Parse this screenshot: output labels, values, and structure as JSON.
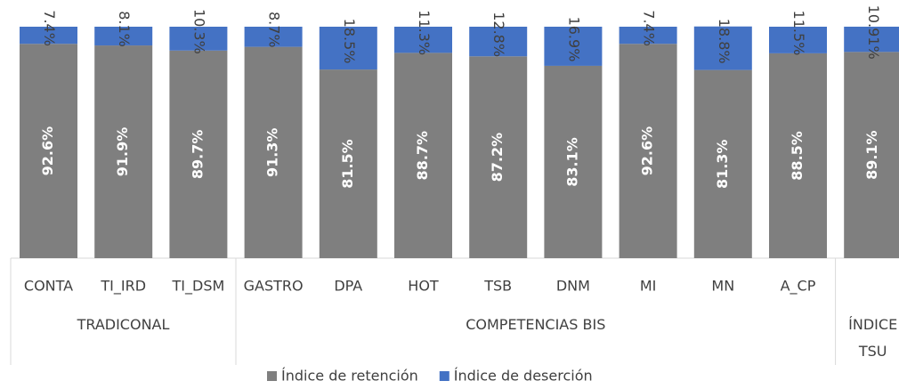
{
  "chart_data": {
    "type": "stacked_bar",
    "categories": [
      "CONTA",
      "TI_IRD",
      "TI_DSM",
      "GASTRO",
      "DPA",
      "HOT",
      "TSB",
      "DNM",
      "MI",
      "MN",
      "A_CP",
      null
    ],
    "groups": [
      {
        "label": "TRADICONAL",
        "span": 3
      },
      {
        "label": "COMPETENCIAS BIS",
        "span": 8
      },
      {
        "label": "ÍNDICE TSU",
        "span": 1
      }
    ],
    "series": [
      {
        "name": "Índice de retención",
        "color": "#7f7f7f",
        "values": [
          92.6,
          91.9,
          89.7,
          91.3,
          81.5,
          88.7,
          87.2,
          83.1,
          92.6,
          81.3,
          88.5,
          89.1
        ],
        "value_labels": [
          "92.6%",
          "91.9%",
          "89.7%",
          "91.3%",
          "81.5%",
          "88.7%",
          "87.2%",
          "83.1%",
          "92.6%",
          "81.3%",
          "88.5%",
          "89.1%"
        ]
      },
      {
        "name": "Índice de deserción",
        "color": "#4472c4",
        "values": [
          7.4,
          8.1,
          10.3,
          8.7,
          18.5,
          11.3,
          12.8,
          16.9,
          7.4,
          18.8,
          11.5,
          10.91
        ],
        "value_labels": [
          "7.4%",
          "8.1%",
          "10.3%",
          "8.7%",
          "18.5%",
          "11.3%",
          "12.8%",
          "16.9%",
          "7.4%",
          "18.8%",
          "11.5%",
          "10.91%"
        ]
      }
    ],
    "ylim": [
      0,
      100
    ],
    "legend": "bottom"
  }
}
